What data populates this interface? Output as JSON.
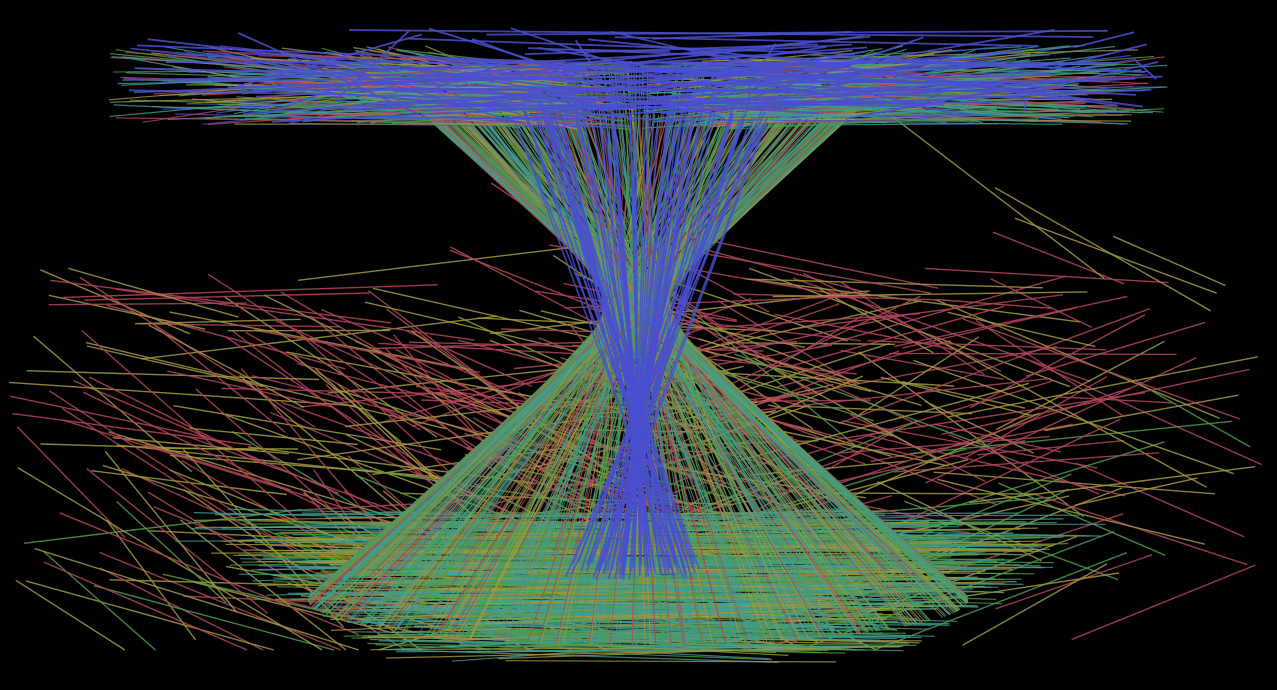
{
  "scene": {
    "background": "#000000",
    "palette": {
      "red": "#b2455a",
      "ochre": "#a39a3c",
      "green": "#4f9a4a",
      "teal": "#3f9d93",
      "blue": "#4a4fcf"
    },
    "layers": [
      {
        "name": "lower-fan-lines",
        "colors": [
          "red",
          "ochre",
          "green"
        ]
      },
      {
        "name": "bottom-fringe-lines",
        "colors": [
          "ochre",
          "green",
          "teal"
        ]
      },
      {
        "name": "hourglass-core-lines",
        "colors": [
          "red",
          "ochre",
          "green",
          "teal",
          "blue"
        ]
      },
      {
        "name": "top-canopy-lines",
        "colors": [
          "red",
          "ochre",
          "green",
          "teal",
          "blue"
        ]
      }
    ]
  }
}
